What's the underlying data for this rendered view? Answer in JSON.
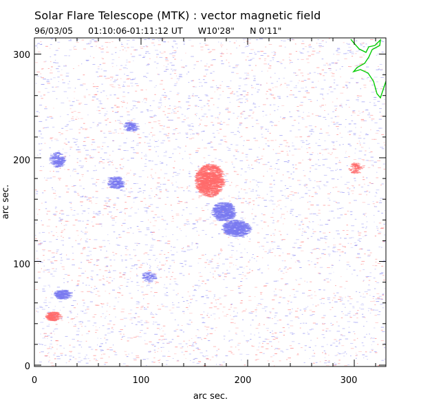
{
  "header": {
    "title": "Solar Flare Telescope (MTK) : vector magnetic field",
    "date": "96/03/05",
    "time_range": "01:10:06-01:11:12 UT",
    "longitude": "W10'28\"",
    "latitude": "N 0'11\""
  },
  "axes": {
    "xlabel": "arc sec.",
    "ylabel": "arc sec.",
    "xlim": [
      0,
      330
    ],
    "ylim": [
      0,
      315
    ],
    "xticks": [
      "0",
      "100",
      "200",
      "300"
    ],
    "yticks": [
      "0",
      "100",
      "200",
      "300"
    ]
  },
  "colors": {
    "positive_polarity": "#ff6b6b",
    "negative_polarity": "#7a7af0",
    "limb_contour": "#00cc00",
    "frame": "#000000"
  }
}
